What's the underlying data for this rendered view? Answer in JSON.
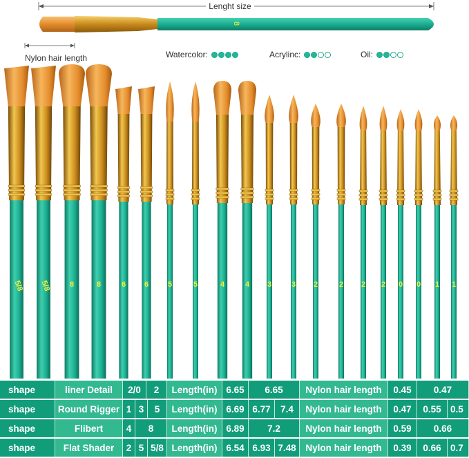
{
  "header": {
    "length_label": "Lenght size",
    "nylon_label": "Nylon hair length",
    "top_brush_number": "8"
  },
  "legend": [
    {
      "label": "Watercolor:",
      "rating": 4,
      "max": 4
    },
    {
      "label": "Acrylinc:",
      "rating": 2,
      "max": 4
    },
    {
      "label": "Oil:",
      "rating": 2,
      "max": 4
    }
  ],
  "brushes": [
    {
      "number": "5/8",
      "head": "flat"
    },
    {
      "number": "5/8",
      "head": "flat"
    },
    {
      "number": "8",
      "head": "filbert"
    },
    {
      "number": "8",
      "head": "filbert"
    },
    {
      "number": "6",
      "head": "flat"
    },
    {
      "number": "6",
      "head": "flat"
    },
    {
      "number": "5",
      "head": "liner"
    },
    {
      "number": "5",
      "head": "liner"
    },
    {
      "number": "4",
      "head": "filbert"
    },
    {
      "number": "4",
      "head": "filbert"
    },
    {
      "number": "3",
      "head": "round"
    },
    {
      "number": "3",
      "head": "round"
    },
    {
      "number": "2",
      "head": "round"
    },
    {
      "number": "2",
      "head": "round"
    },
    {
      "number": "2",
      "head": "round"
    },
    {
      "number": "2",
      "head": "round"
    },
    {
      "number": "0",
      "head": "round"
    },
    {
      "number": "0",
      "head": "round"
    },
    {
      "number": "1",
      "head": "round"
    },
    {
      "number": "1",
      "head": "round"
    }
  ],
  "colors": {
    "handle": "#1cae92",
    "handle_dark": "#0f8a72",
    "ferrule": "#c98a1c",
    "ferrule_light": "#f2c64e",
    "bristle": "#e48c2c",
    "bristle_light": "#f7b65c",
    "number_text": "#f2ef3a",
    "table_dark": "#129d7a",
    "table_light": "#33b98f"
  },
  "table": [
    {
      "shape": "shape",
      "name": "liner Detail",
      "sizes": [
        "2/0",
        "2"
      ],
      "length_label": "Length(in)",
      "lengths": [
        "6.65",
        "6.65"
      ],
      "nylon_label": "Nylon hair length",
      "nylon": [
        "0.45",
        "0.47"
      ]
    },
    {
      "shape": "shape",
      "name": "Round Rigger",
      "sizes": [
        "1",
        "3",
        "5"
      ],
      "length_label": "Length(in)",
      "lengths": [
        "6.69",
        "6.77",
        "7.4"
      ],
      "nylon_label": "Nylon hair length",
      "nylon": [
        "0.47",
        "0.55",
        "0.5"
      ]
    },
    {
      "shape": "shape",
      "name": "Flibert",
      "sizes": [
        "4",
        "8"
      ],
      "length_label": "Length(in)",
      "lengths": [
        "6.89",
        "7.2"
      ],
      "nylon_label": "Nylon hair length",
      "nylon": [
        "0.59",
        "0.66"
      ]
    },
    {
      "shape": "shape",
      "name": "Flat Shader",
      "sizes": [
        "2",
        "5",
        "5/8"
      ],
      "length_label": "Length(in)",
      "lengths": [
        "6.54",
        "6.93",
        "7.48"
      ],
      "nylon_label": "Nylon hair length",
      "nylon": [
        "0.39",
        "0.66",
        "0.7"
      ]
    }
  ]
}
